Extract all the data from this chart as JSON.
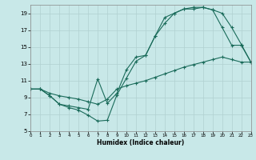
{
  "xlabel": "Humidex (Indice chaleur)",
  "bg_color": "#c8e8e8",
  "grid_color": "#b0d0d0",
  "line_color": "#1a6b5a",
  "xlim": [
    0,
    23
  ],
  "ylim": [
    5,
    20
  ],
  "xticks": [
    0,
    1,
    2,
    3,
    4,
    5,
    6,
    7,
    8,
    9,
    10,
    11,
    12,
    13,
    14,
    15,
    16,
    17,
    18,
    19,
    20,
    21,
    22,
    23
  ],
  "yticks": [
    5,
    7,
    9,
    11,
    13,
    15,
    17,
    19
  ],
  "line1_x": [
    0,
    1,
    2,
    3,
    4,
    5,
    6,
    7,
    8,
    9,
    10,
    11,
    12,
    13,
    14,
    15,
    16,
    17,
    18,
    19,
    20,
    21,
    22,
    23
  ],
  "line1_y": [
    10,
    10,
    9.2,
    8.2,
    7.8,
    7.5,
    6.9,
    6.2,
    6.3,
    9.3,
    11.3,
    13.3,
    14.0,
    16.3,
    18.5,
    19.0,
    19.5,
    19.7,
    19.7,
    19.4,
    19.0,
    17.3,
    15.3,
    13.2
  ],
  "line2_x": [
    0,
    1,
    2,
    3,
    4,
    5,
    6,
    7,
    8,
    9,
    10,
    11,
    12,
    13,
    14,
    15,
    16,
    17,
    18,
    19,
    20,
    21,
    22,
    23
  ],
  "line2_y": [
    10,
    10,
    9.2,
    8.2,
    8.0,
    7.8,
    7.6,
    11.2,
    8.3,
    9.5,
    12.3,
    13.8,
    14.0,
    16.3,
    17.8,
    19.0,
    19.5,
    19.5,
    19.7,
    19.4,
    17.3,
    15.2,
    15.2,
    13.2
  ],
  "line3_x": [
    0,
    1,
    2,
    3,
    4,
    5,
    6,
    7,
    8,
    9,
    10,
    11,
    12,
    13,
    14,
    15,
    16,
    17,
    18,
    19,
    20,
    21,
    22,
    23
  ],
  "line3_y": [
    10,
    10,
    9.5,
    9.2,
    9.0,
    8.8,
    8.5,
    8.2,
    8.8,
    10.0,
    10.4,
    10.7,
    11.0,
    11.4,
    11.8,
    12.2,
    12.6,
    12.9,
    13.2,
    13.5,
    13.8,
    13.5,
    13.2,
    13.2
  ]
}
